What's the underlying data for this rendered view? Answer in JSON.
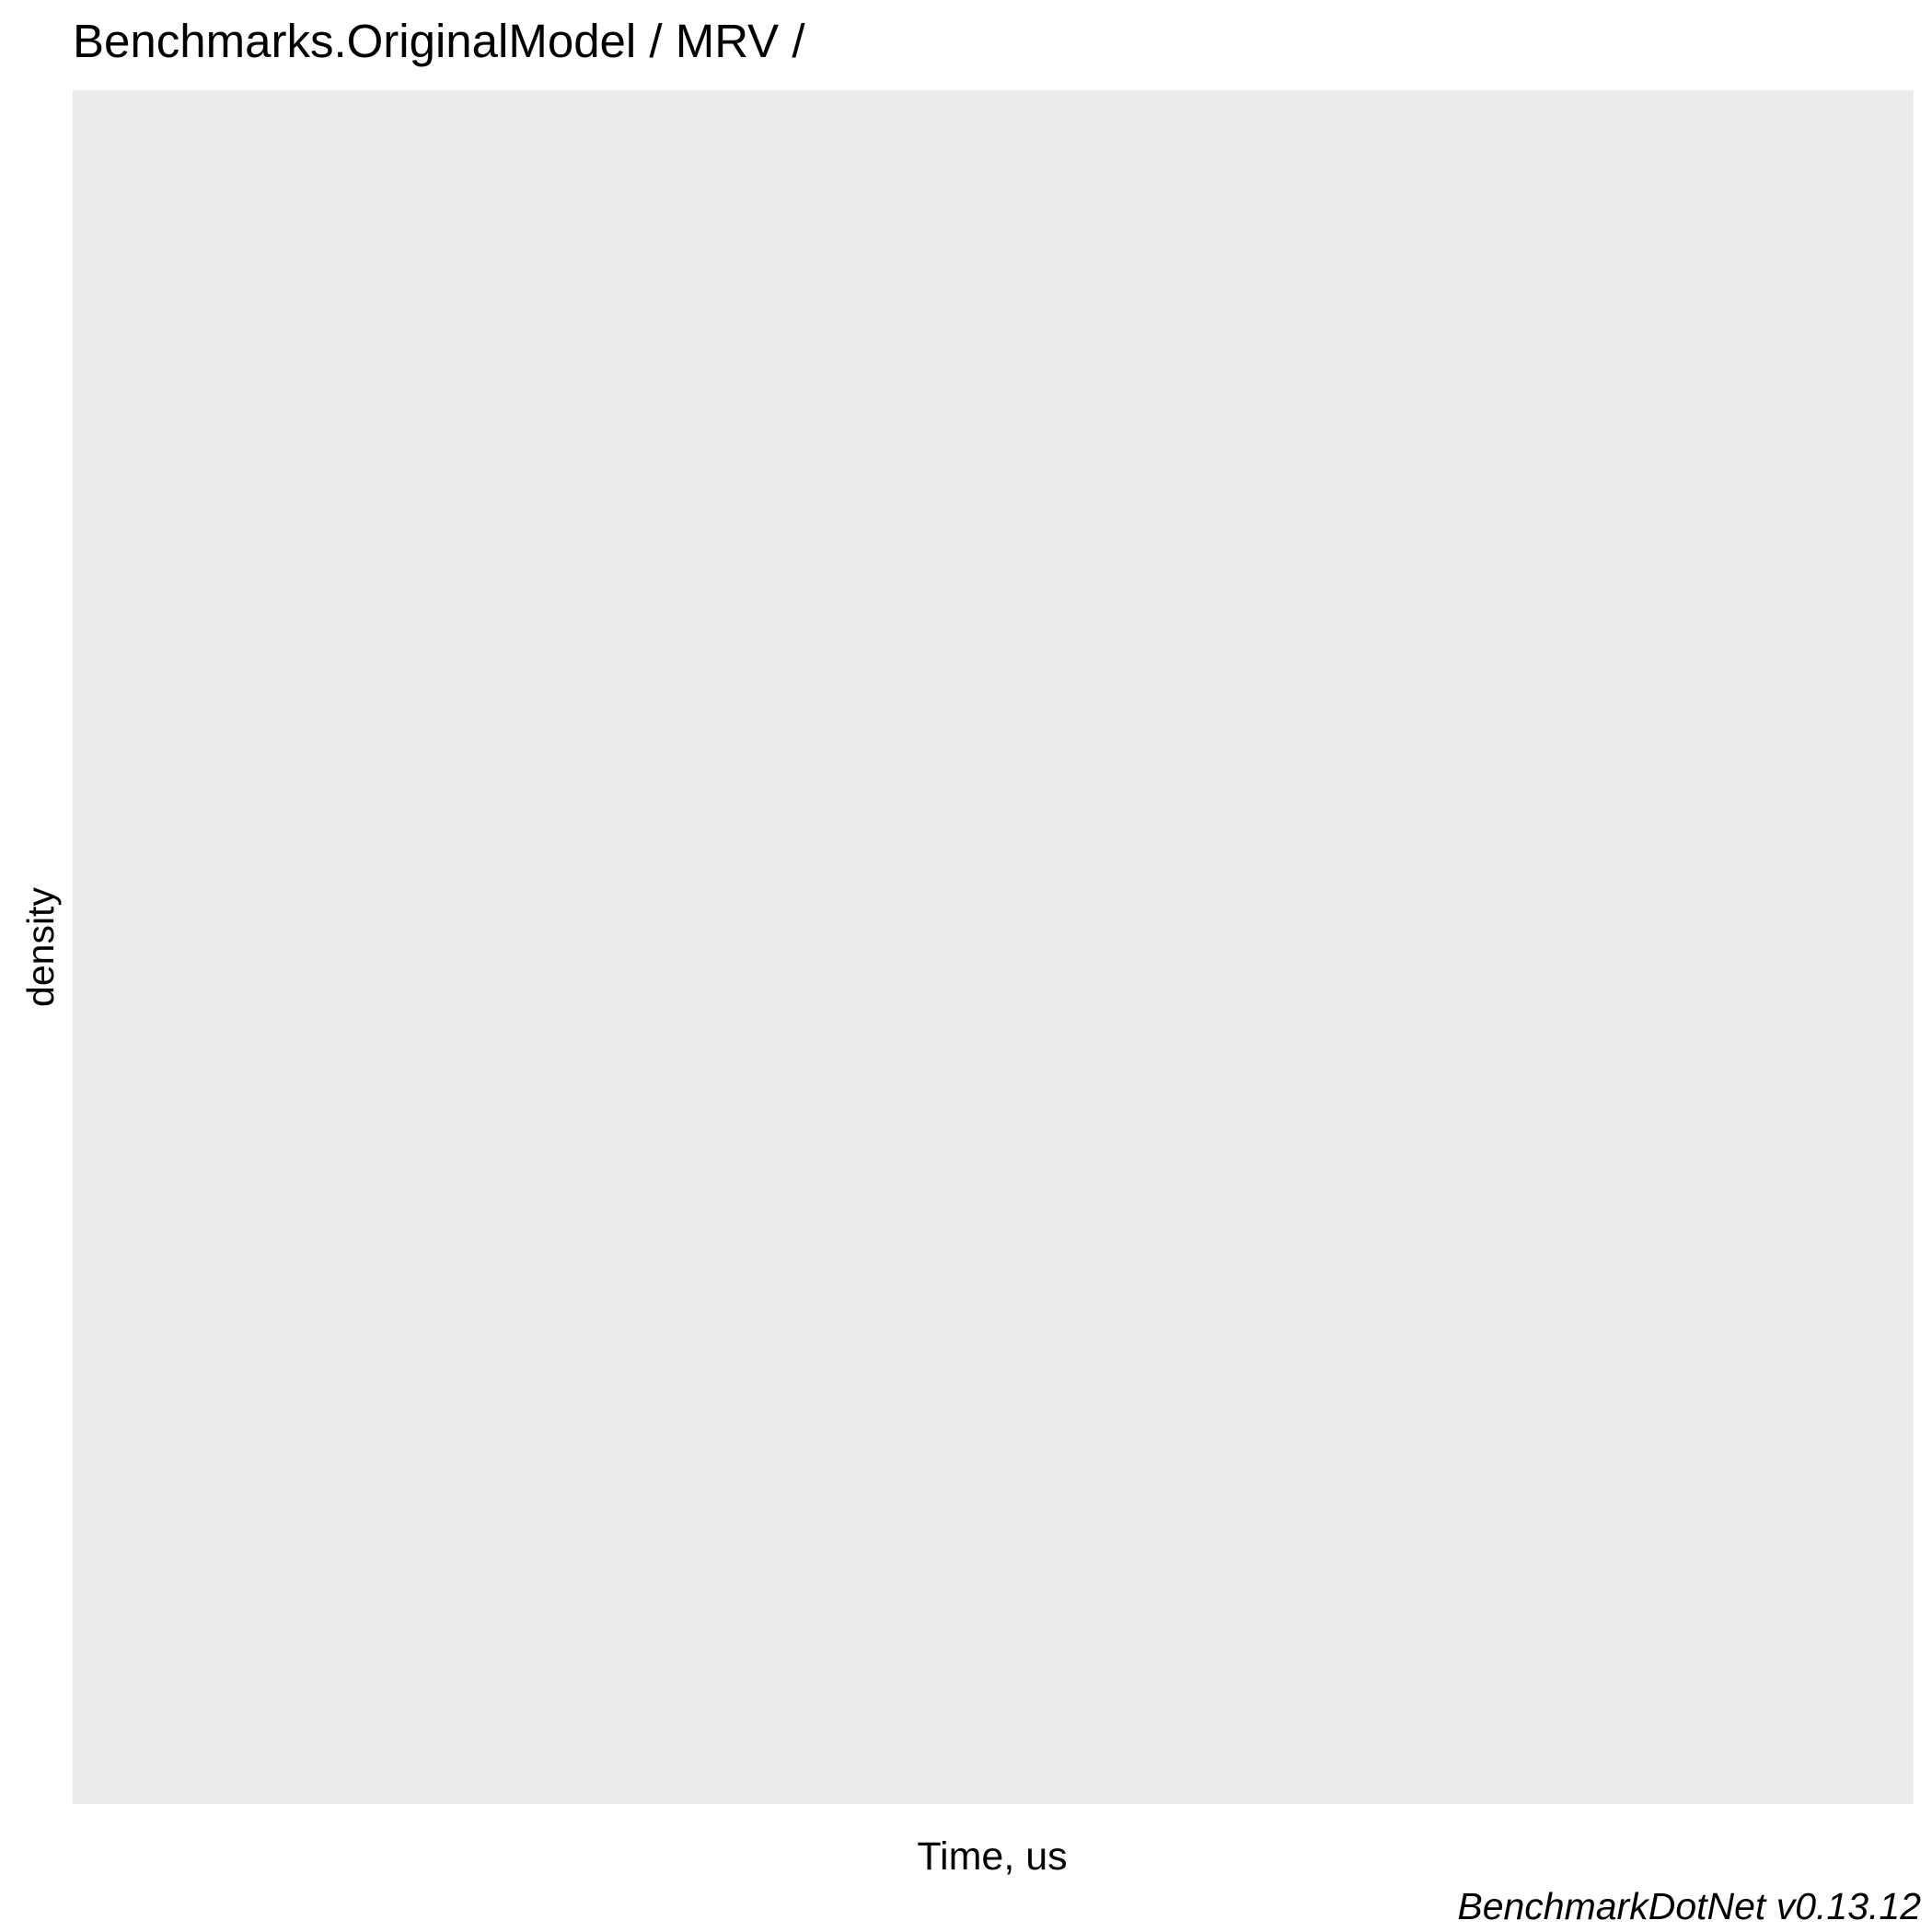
{
  "chart_data": {
    "type": "area",
    "title": "Benchmarks.OriginalModel / MRV /",
    "xlabel": "Time, us",
    "ylabel": "density",
    "caption": "BenchmarkDotNet v0.13.12",
    "series": [],
    "grid": false,
    "legend": "none"
  },
  "colors": {
    "panel_background": "#ebebeb",
    "page_background": "#ffffff",
    "text": "#000000"
  }
}
